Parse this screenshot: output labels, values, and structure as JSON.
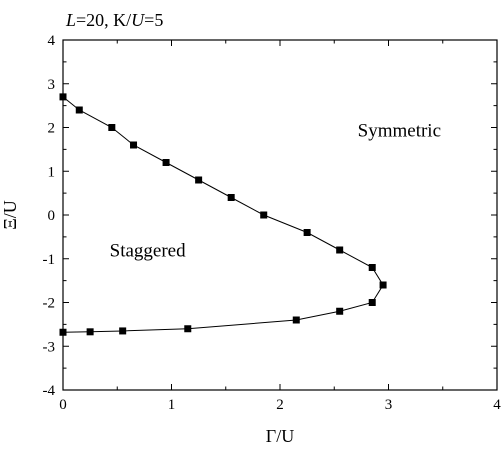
{
  "chart_data": {
    "type": "line",
    "title_parts": [
      {
        "text": "L",
        "italic": true
      },
      {
        "text": "=20, K/",
        "italic": false
      },
      {
        "text": "U",
        "italic": true
      },
      {
        "text": "=5",
        "italic": false
      }
    ],
    "xlabel": "Γ/U",
    "ylabel": "Ξ/U",
    "xlim": [
      0,
      4
    ],
    "ylim": [
      -4,
      4
    ],
    "xticks": [
      0,
      1,
      2,
      3,
      4
    ],
    "yticks": [
      -4,
      -3,
      -2,
      -1,
      0,
      1,
      2,
      3,
      4
    ],
    "grid": false,
    "annotations": [
      {
        "text": "Symmetric",
        "x": 3.1,
        "y": 1.8
      },
      {
        "text": "Staggered",
        "x": 0.78,
        "y": -0.95
      }
    ],
    "series": [
      {
        "marker": "square",
        "color": "#000000",
        "x": [
          0.0,
          0.15,
          0.45,
          0.65,
          0.95,
          1.25,
          1.55,
          1.85,
          2.25,
          2.55,
          2.85,
          2.95,
          2.85,
          2.55,
          2.15,
          1.15,
          0.55,
          0.25,
          0.0
        ],
        "y": [
          2.7,
          2.4,
          2.0,
          1.6,
          1.2,
          0.8,
          0.4,
          0.0,
          -0.4,
          -0.8,
          -1.2,
          -1.6,
          -2.0,
          -2.2,
          -2.4,
          -2.6,
          -2.65,
          -2.67,
          -2.68
        ]
      }
    ]
  }
}
